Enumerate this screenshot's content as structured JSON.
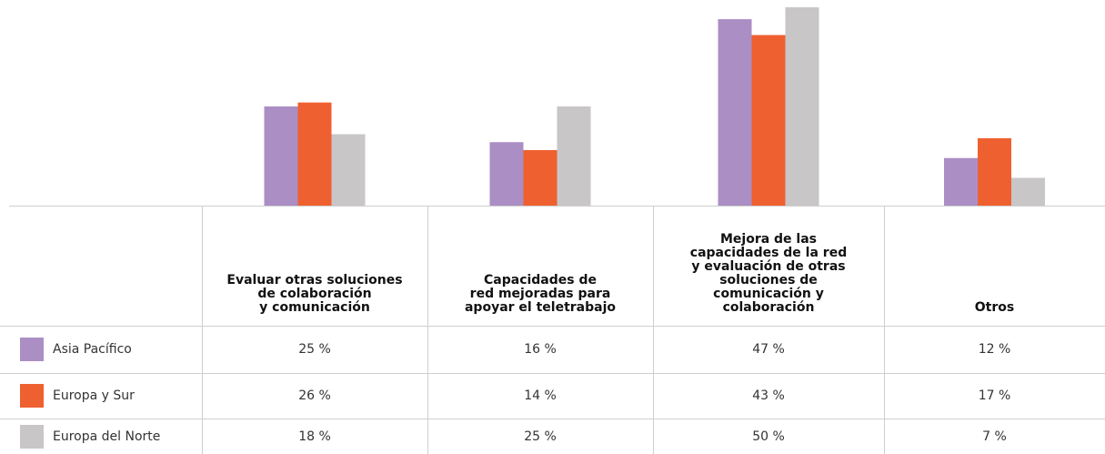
{
  "chart_data": {
    "type": "bar",
    "categories": [
      "Evaluar otras soluciones\nde colaboración\ny comunicación",
      "Capacidades de\nred mejoradas para\napoyar el teletrabajo",
      "Mejora de las\ncapacidades de la red\ny evaluación de otras\nsoluciones de\ncomunicación y\ncolaboración",
      "Otros"
    ],
    "series": [
      {
        "name": "Asia Pacífico",
        "color": "#ab8ec4",
        "values": [
          25,
          16,
          47,
          12
        ],
        "value_labels": [
          "25 %",
          "16 %",
          "47 %",
          "12 %"
        ]
      },
      {
        "name": "Europa y Sur",
        "color": "#ef6030",
        "values": [
          26,
          14,
          43,
          17
        ],
        "value_labels": [
          "26 %",
          "14 %",
          "43 %",
          "17 %"
        ]
      },
      {
        "name": "Europa del Norte",
        "color": "#c8c6c6",
        "values": [
          18,
          25,
          50,
          7
        ],
        "value_labels": [
          "18 %",
          "25 %",
          "50 %",
          "7 %"
        ]
      }
    ]
  }
}
